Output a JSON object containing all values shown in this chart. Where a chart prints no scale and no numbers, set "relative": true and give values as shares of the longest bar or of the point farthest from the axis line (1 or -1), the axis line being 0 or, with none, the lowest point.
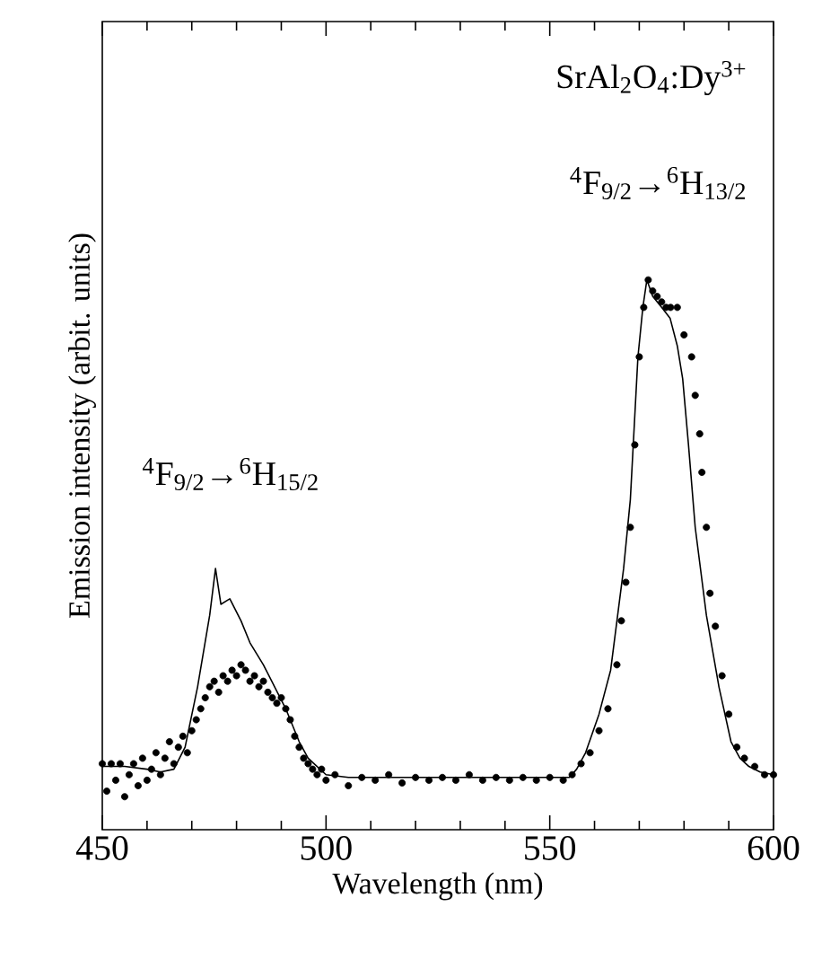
{
  "chart_data": {
    "type": "line",
    "relative": true,
    "xlabel": "Wavelength (nm)",
    "ylabel": "Emission intensity (arbit. units)",
    "xlim": [
      450,
      600
    ],
    "xticks": [
      450,
      500,
      550,
      600
    ],
    "grid": false,
    "annotations": [
      "SrAl$_{2}$O$_{4}$:Dy$^{3+}$",
      "$^{4}$F$_{9/2}$→$^{6}$H$_{13/2}$",
      "$^{4}$F$_{9/2}$→$^{6}$H$_{15/2}$"
    ],
    "series": [
      {
        "color": "#000000",
        "marker": "none",
        "line_style": "solid",
        "x": [
          450,
          455,
          460,
          463,
          466,
          468.5,
          471.3,
          474,
          475.3,
          476.5,
          478.5,
          481,
          483,
          486,
          488.5,
          491,
          494,
          496,
          498,
          500,
          505,
          510,
          520,
          530,
          540,
          550,
          554.4,
          556,
          558,
          561,
          563.6,
          566.5,
          568,
          569.7,
          570.8,
          571.7,
          573,
          575,
          576.9,
          578.5,
          579.7,
          581,
          582.5,
          585,
          587.8,
          590.5,
          592.5,
          594.5,
          597,
          600
        ],
        "values": [
          0.115,
          0.115,
          0.11,
          0.105,
          0.11,
          0.15,
          0.26,
          0.39,
          0.475,
          0.41,
          0.42,
          0.38,
          0.34,
          0.3,
          0.26,
          0.22,
          0.16,
          0.13,
          0.115,
          0.1,
          0.095,
          0.095,
          0.095,
          0.095,
          0.095,
          0.095,
          0.095,
          0.11,
          0.14,
          0.21,
          0.29,
          0.475,
          0.6,
          0.86,
          0.95,
          1.0,
          0.97,
          0.95,
          0.93,
          0.88,
          0.82,
          0.7,
          0.55,
          0.39,
          0.26,
          0.16,
          0.13,
          0.115,
          0.105,
          0.1
        ]
      },
      {
        "type": "scatter",
        "color": "#000000",
        "marker": "circle",
        "x": [
          450,
          451,
          452,
          453,
          454,
          455,
          456,
          457,
          458,
          459,
          460,
          461,
          462,
          463,
          464,
          465,
          466,
          467,
          468,
          469,
          470,
          471,
          472,
          473,
          474,
          475,
          476,
          477,
          478,
          479,
          480,
          481,
          482,
          483,
          484,
          485,
          486,
          487,
          488,
          489,
          490,
          491,
          492,
          493,
          494,
          495,
          496,
          497,
          498,
          499,
          500,
          502,
          505,
          508,
          511,
          514,
          517,
          520,
          523,
          526,
          529,
          532,
          535,
          538,
          541,
          544,
          547,
          550,
          553,
          555,
          557,
          559,
          561,
          563,
          565,
          566,
          567,
          568,
          569,
          570,
          571,
          572,
          573,
          574,
          575,
          576,
          577,
          578.5,
          580,
          581.7,
          582.5,
          583.5,
          584,
          585,
          585.8,
          587,
          588.5,
          590,
          591.8,
          593.5,
          595.8,
          598,
          600
        ],
        "values": [
          0.12,
          0.07,
          0.12,
          0.09,
          0.12,
          0.06,
          0.1,
          0.12,
          0.08,
          0.13,
          0.09,
          0.11,
          0.14,
          0.1,
          0.13,
          0.16,
          0.12,
          0.15,
          0.17,
          0.14,
          0.18,
          0.2,
          0.22,
          0.24,
          0.26,
          0.27,
          0.25,
          0.28,
          0.27,
          0.29,
          0.28,
          0.3,
          0.29,
          0.27,
          0.28,
          0.26,
          0.27,
          0.25,
          0.24,
          0.23,
          0.24,
          0.22,
          0.2,
          0.17,
          0.15,
          0.13,
          0.12,
          0.11,
          0.1,
          0.11,
          0.09,
          0.1,
          0.08,
          0.095,
          0.09,
          0.1,
          0.085,
          0.095,
          0.09,
          0.095,
          0.09,
          0.1,
          0.09,
          0.095,
          0.09,
          0.095,
          0.09,
          0.095,
          0.09,
          0.1,
          0.12,
          0.14,
          0.18,
          0.22,
          0.3,
          0.38,
          0.45,
          0.55,
          0.7,
          0.86,
          0.95,
          1.0,
          0.98,
          0.97,
          0.96,
          0.95,
          0.95,
          0.95,
          0.9,
          0.86,
          0.79,
          0.72,
          0.65,
          0.55,
          0.43,
          0.37,
          0.28,
          0.21,
          0.15,
          0.13,
          0.115,
          0.1,
          0.1
        ]
      }
    ]
  }
}
